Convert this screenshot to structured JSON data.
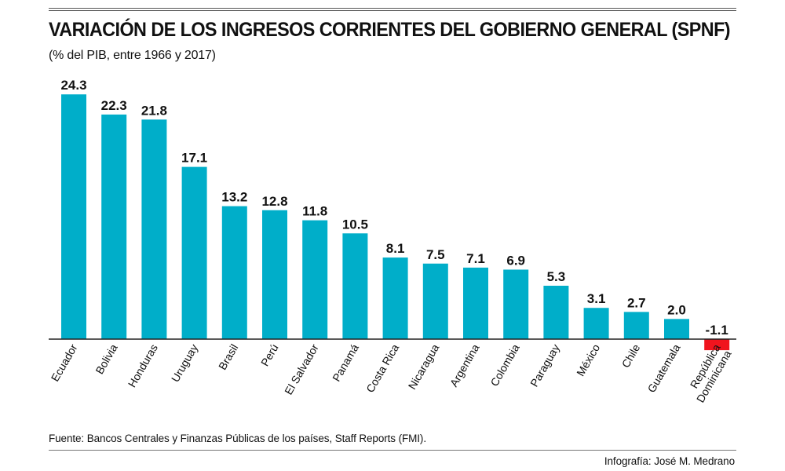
{
  "header": {
    "title": "VARIACIÓN DE LOS INGRESOS CORRIENTES DEL GOBIERNO GENERAL (SPNF)",
    "subtitle": "(% del PIB, entre 1966 y 2017)"
  },
  "footer": {
    "source": "Fuente: Bancos Centrales y Finanzas Públicas de los países, Staff Reports (FMI).",
    "credit": "Infografía: José M. Medrano"
  },
  "colors": {
    "positive": "#00AEC9",
    "negative": "#F0141E",
    "axis": "#222222",
    "rule": "#555555"
  },
  "chart_data": {
    "type": "bar",
    "title": "VARIACIÓN DE LOS INGRESOS CORRIENTES DEL GOBIERNO GENERAL (SPNF)",
    "subtitle": "(% del PIB, entre 1966 y 2017)",
    "xlabel": "",
    "ylabel": "",
    "grid": false,
    "legend": "none",
    "categories": [
      [
        "Ecuador"
      ],
      [
        "Bolivia"
      ],
      [
        "Honduras"
      ],
      [
        "Uruguay"
      ],
      [
        "Brasil"
      ],
      [
        "Perú"
      ],
      [
        "El Salvador"
      ],
      [
        "Panamá"
      ],
      [
        "Costa Rica"
      ],
      [
        "Nicaragua"
      ],
      [
        "Argentina"
      ],
      [
        "Colombia"
      ],
      [
        "Paraguay"
      ],
      [
        "México"
      ],
      [
        "Chile"
      ],
      [
        "Guatemala"
      ],
      [
        "República",
        "Dominicana"
      ]
    ],
    "values": [
      24.3,
      22.3,
      21.8,
      17.1,
      13.2,
      12.8,
      11.8,
      10.5,
      8.1,
      7.5,
      7.1,
      6.9,
      5.3,
      3.1,
      2.7,
      2.0,
      -1.1
    ],
    "labels": [
      "24.3",
      "22.3",
      "21.8",
      "17.1",
      "13.2",
      "12.8",
      "11.8",
      "10.5",
      "8.1",
      "7.5",
      "7.1",
      "6.9",
      "5.3",
      "3.1",
      "2.7",
      "2.0",
      "-1.1"
    ]
  }
}
